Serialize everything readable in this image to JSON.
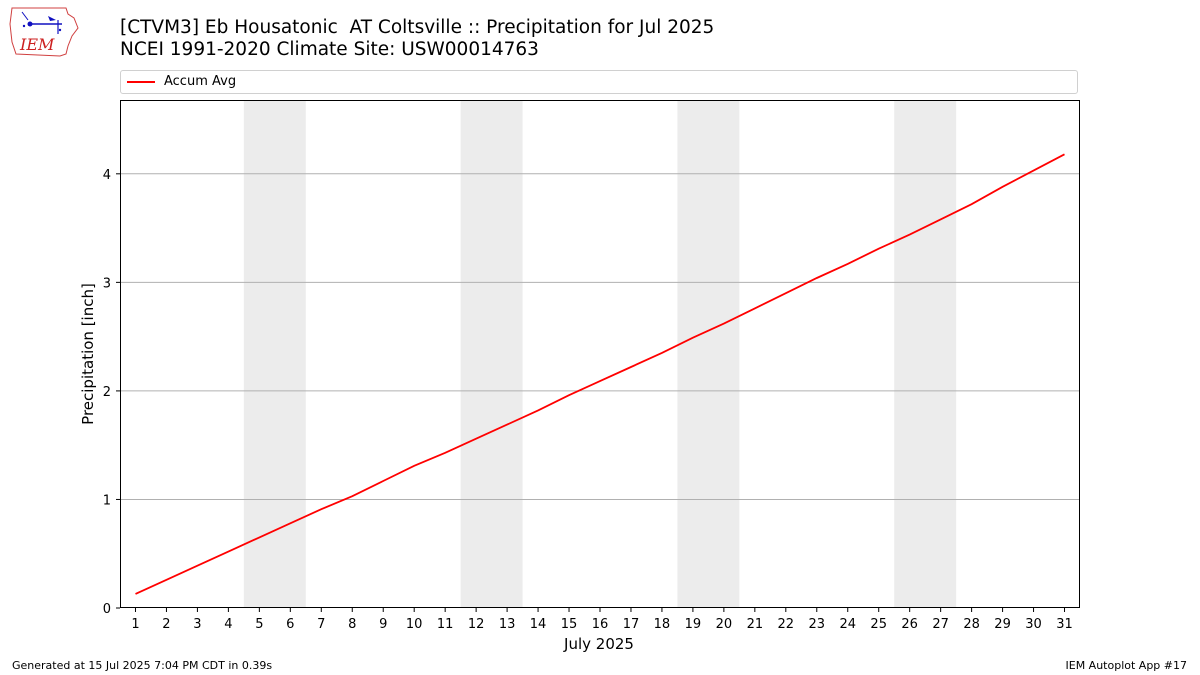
{
  "header": {
    "title_line1": "[CTVM3] Eb Housatonic  AT Coltsville :: Precipitation for Jul 2025",
    "title_line2": "NCEI 1991-2020 Climate Site: USW00014763"
  },
  "logo": {
    "text": "IEM"
  },
  "footer": {
    "generated": "Generated at 15 Jul 2025 7:04 PM CDT in 0.39s",
    "app": "IEM Autoplot App #17"
  },
  "colors": {
    "line": "#ff0000",
    "weekend": "#ececec",
    "grid": "#b0b0b0"
  },
  "chart_data": {
    "type": "line",
    "xlabel": "July 2025",
    "ylabel": "Precipitation [inch]",
    "x": [
      1,
      2,
      3,
      4,
      5,
      6,
      7,
      8,
      9,
      10,
      11,
      12,
      13,
      14,
      15,
      16,
      17,
      18,
      19,
      20,
      21,
      22,
      23,
      24,
      25,
      26,
      27,
      28,
      29,
      30,
      31
    ],
    "xlim": [
      0.5,
      31.5
    ],
    "ylim": [
      0,
      4.68
    ],
    "yticks": [
      0,
      1,
      2,
      3,
      4
    ],
    "grid": "horizontal",
    "legend": "top",
    "shaded_days": [
      [
        5,
        6
      ],
      [
        12,
        13
      ],
      [
        19,
        20
      ],
      [
        26,
        27
      ]
    ],
    "series": [
      {
        "name": "Accum Avg",
        "values": [
          0.13,
          0.26,
          0.39,
          0.52,
          0.65,
          0.78,
          0.91,
          1.03,
          1.17,
          1.31,
          1.43,
          1.56,
          1.69,
          1.82,
          1.96,
          2.09,
          2.22,
          2.35,
          2.49,
          2.62,
          2.76,
          2.9,
          3.04,
          3.17,
          3.31,
          3.44,
          3.58,
          3.72,
          3.88,
          4.03,
          4.18
        ]
      }
    ]
  }
}
